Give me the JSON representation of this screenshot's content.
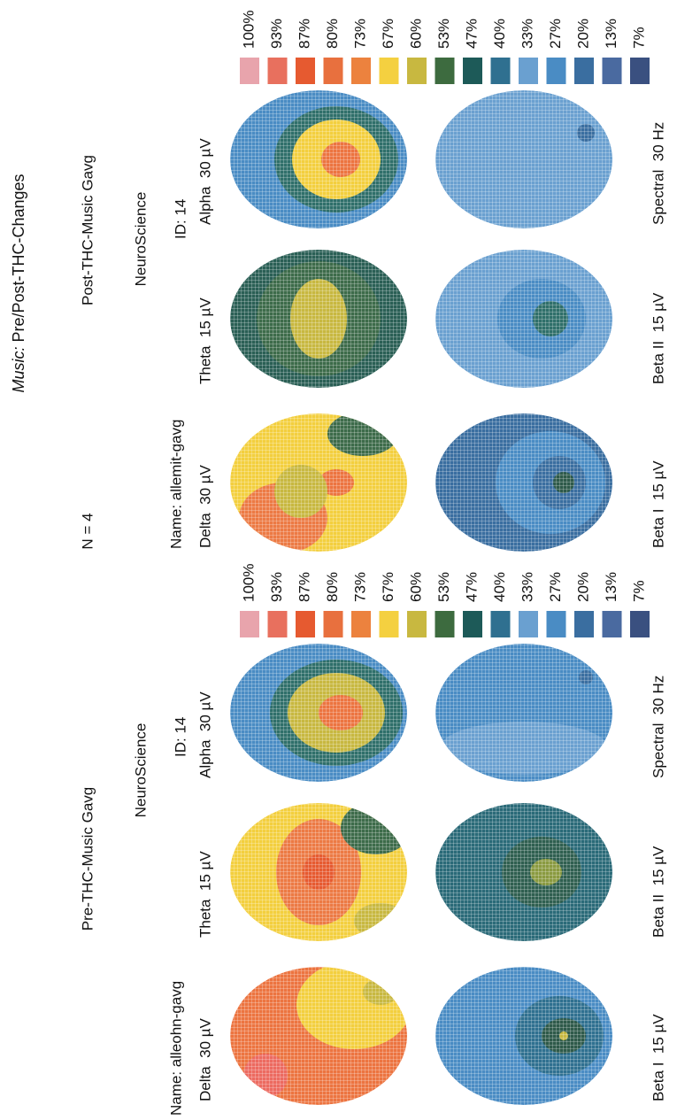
{
  "title": {
    "emphasis": "Music:",
    "text": "Pre/Post-THC-Changes"
  },
  "n_label": "N = 4",
  "panels": [
    {
      "heading": "Pre-THC-Music Gavg",
      "organization": "NeuroScience",
      "name": "Name: alleohn-gavg",
      "id": "ID: 14",
      "maps": [
        "Delta  30 µV",
        "Theta  15 µV",
        "Alpha  30 µV",
        "Beta I  15 µV",
        "Beta II  15 µV",
        "Spectral  30 Hz"
      ],
      "scale": [
        {
          "label": "100%",
          "color": "#e8a4ac"
        },
        {
          "label": "93%",
          "color": "#e8705e"
        },
        {
          "label": "87%",
          "color": "#e65a30"
        },
        {
          "label": "80%",
          "color": "#e8703e"
        },
        {
          "label": "73%",
          "color": "#ec823e"
        },
        {
          "label": "67%",
          "color": "#f4d040"
        },
        {
          "label": "60%",
          "color": "#c8b840"
        },
        {
          "label": "53%",
          "color": "#3d6b3f"
        },
        {
          "label": "47%",
          "color": "#1d5a58"
        },
        {
          "label": "40%",
          "color": "#2f7090"
        },
        {
          "label": "33%",
          "color": "#6aa0d0"
        },
        {
          "label": "27%",
          "color": "#4a8cc4"
        },
        {
          "label": "20%",
          "color": "#3a6ea0"
        },
        {
          "label": "13%",
          "color": "#4a6aa0"
        },
        {
          "label": "7%",
          "color": "#3a5080"
        }
      ]
    },
    {
      "heading": "Post-THC-Music Gavg",
      "organization": "NeuroScience",
      "name": "Name: allemit-gavg",
      "id": "ID: 14",
      "maps": [
        "Delta  30 µV",
        "Theta  15 µV",
        "Alpha  30 µV",
        "Beta I  15 µV",
        "Beta II  15 µV",
        "Spectral  30 Hz"
      ],
      "scale": [
        {
          "label": "100%",
          "color": "#e8a4ac"
        },
        {
          "label": "93%",
          "color": "#e8705e"
        },
        {
          "label": "87%",
          "color": "#e65a30"
        },
        {
          "label": "80%",
          "color": "#e8703e"
        },
        {
          "label": "73%",
          "color": "#ec823e"
        },
        {
          "label": "67%",
          "color": "#f4d040"
        },
        {
          "label": "60%",
          "color": "#c8b840"
        },
        {
          "label": "53%",
          "color": "#3d6b3f"
        },
        {
          "label": "47%",
          "color": "#1d5a58"
        },
        {
          "label": "40%",
          "color": "#2f7090"
        },
        {
          "label": "33%",
          "color": "#6aa0d0"
        },
        {
          "label": "27%",
          "color": "#4a8cc4"
        },
        {
          "label": "20%",
          "color": "#3a6ea0"
        },
        {
          "label": "13%",
          "color": "#4a6aa0"
        },
        {
          "label": "7%",
          "color": "#3a5080"
        }
      ]
    }
  ]
}
